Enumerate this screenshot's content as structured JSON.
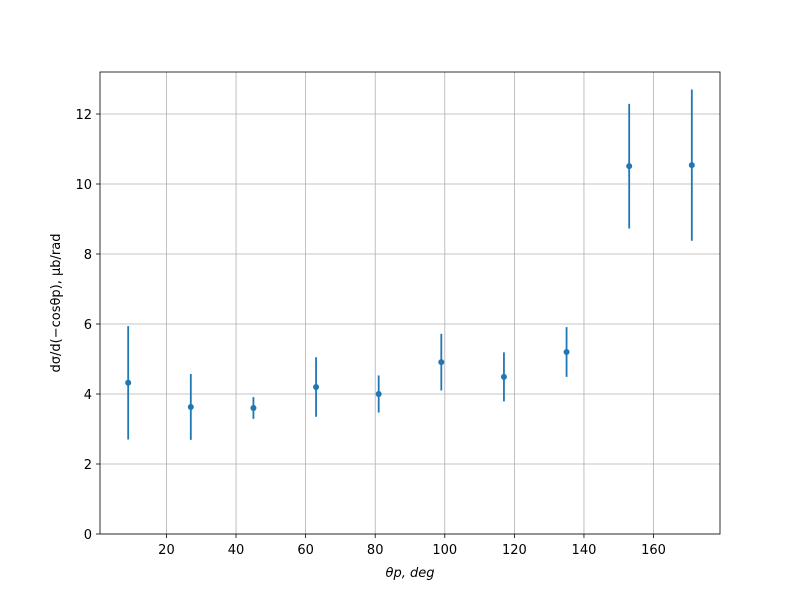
{
  "chart_data": {
    "type": "errorbar",
    "xlabel": "θp, deg",
    "ylabel": "dσ/d(−cosθp), μb/rad",
    "x": [
      9,
      27,
      45,
      63,
      81,
      99,
      117,
      135,
      153,
      171
    ],
    "series": [
      {
        "color": "#1f77b4",
        "values": [
          4.32,
          3.63,
          3.6,
          4.2,
          4.0,
          4.91,
          4.49,
          5.2,
          10.51,
          10.54
        ],
        "errors": [
          1.62,
          0.94,
          0.31,
          0.85,
          0.53,
          0.81,
          0.7,
          0.71,
          1.78,
          2.16
        ]
      }
    ],
    "xlim": [
      0.9,
      179.1
    ],
    "xticks": [
      20,
      40,
      60,
      80,
      100,
      120,
      140,
      160
    ],
    "ylim": [
      0,
      13.2
    ],
    "yticks": [
      0,
      2,
      4,
      6,
      8,
      10,
      12
    ],
    "grid": true
  }
}
